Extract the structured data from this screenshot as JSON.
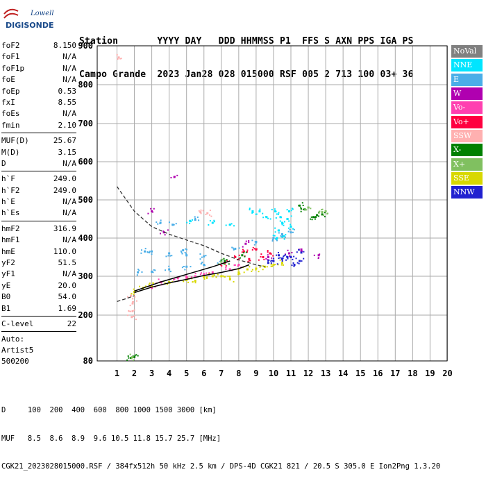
{
  "logo": {
    "line1": "Lowell",
    "line2": "DIGISONDE"
  },
  "header": {
    "row1": "Station       YYYY DAY   DDD HHMMSS P1  FFS S AXN PPS IGA PS",
    "row2": "Campo Grande  2023 Jan28 028 015000 RSF 005 2 713 100 03+ 36"
  },
  "params_group1": [
    {
      "label": "foF2",
      "value": "8.150"
    },
    {
      "label": "foF1",
      "value": "N/A"
    },
    {
      "label": "foF1p",
      "value": "N/A"
    },
    {
      "label": "foE",
      "value": "N/A"
    },
    {
      "label": "foEp",
      "value": "0.53"
    },
    {
      "label": "fxI",
      "value": "8.55"
    },
    {
      "label": "foEs",
      "value": "N/A"
    },
    {
      "label": "fmin",
      "value": "2.10"
    }
  ],
  "params_group2": [
    {
      "label": "MUF(D)",
      "value": "25.67"
    },
    {
      "label": "M(D)",
      "value": "3.15"
    },
    {
      "label": "D",
      "value": "N/A"
    }
  ],
  "params_group3": [
    {
      "label": "h`F",
      "value": "249.0"
    },
    {
      "label": "h`F2",
      "value": "249.0"
    },
    {
      "label": "h`E",
      "value": "N/A"
    },
    {
      "label": "h`Es",
      "value": "N/A"
    }
  ],
  "params_group4": [
    {
      "label": "hmF2",
      "value": "316.9"
    },
    {
      "label": "hmF1",
      "value": "N/A"
    },
    {
      "label": "hmE",
      "value": "110.0"
    },
    {
      "label": "yF2",
      "value": "51.5"
    },
    {
      "label": "yF1",
      "value": "N/A"
    },
    {
      "label": "yE",
      "value": "20.0"
    },
    {
      "label": "B0",
      "value": "54.0"
    },
    {
      "label": "B1",
      "value": "1.69"
    }
  ],
  "params_group5": [
    {
      "label": "C-level",
      "value": "22"
    }
  ],
  "auto": {
    "line1": "Auto:",
    "line2": "Artist5",
    "line3": "500200"
  },
  "legend": [
    {
      "label": "NoVal",
      "color": "#808080"
    },
    {
      "label": "NNE",
      "color": "#00e5ff"
    },
    {
      "label": "E",
      "color": "#4aaee8"
    },
    {
      "label": "W",
      "color": "#b000b0"
    },
    {
      "label": "Vo-",
      "color": "#ff40b0"
    },
    {
      "label": "Vo+",
      "color": "#ff0040"
    },
    {
      "label": "SSW",
      "color": "#ffb0b0"
    },
    {
      "label": "X-",
      "color": "#008000"
    },
    {
      "label": "X+",
      "color": "#80c060"
    },
    {
      "label": "SSE",
      "color": "#d8d800"
    },
    {
      "label": "NNW",
      "color": "#2020d0"
    }
  ],
  "footer": {
    "line1": "D     100  200  400  600  800 1000 1500 3000 [km]",
    "line2": "MUF   8.5  8.6  8.9  9.6 10.5 11.8 15.7 25.7 [MHz]",
    "line3": "CGK21_2023028015000.RSF / 384fx512h 50 kHz 2.5 km / DPS-4D CGK21 821 / 20.5 S 305.0 E Ion2Png 1.3.20"
  },
  "chart_data": {
    "type": "scatter",
    "x_ticks": [
      1,
      2,
      3,
      4,
      5,
      6,
      7,
      8,
      9,
      10,
      11,
      12,
      13,
      14,
      15,
      16,
      17,
      18,
      19,
      20
    ],
    "y_ticks": [
      80,
      200,
      300,
      400,
      500,
      600,
      700,
      800,
      900
    ],
    "xlim": [
      1,
      20
    ],
    "ylim": [
      80,
      900
    ],
    "grid": true,
    "series": [
      {
        "name": "NNE",
        "values": [
          [
            10.3,
            420
          ],
          [
            10.5,
            440
          ],
          [
            10.8,
            450
          ],
          [
            9.6,
            455
          ],
          [
            8.8,
            470
          ],
          [
            10.2,
            400
          ],
          [
            5.2,
            445
          ],
          [
            7.5,
            435
          ],
          [
            11.0,
            430
          ],
          [
            10.9,
            470
          ],
          [
            10.6,
            405
          ],
          [
            10.4,
            455
          ],
          [
            10.1,
            470
          ],
          [
            6.5,
            440
          ],
          [
            9.2,
            470
          ]
        ]
      },
      {
        "name": "E",
        "values": [
          [
            3.0,
            365
          ],
          [
            4.0,
            360
          ],
          [
            5.0,
            355
          ],
          [
            6.0,
            352
          ],
          [
            3.5,
            440
          ],
          [
            4.2,
            435
          ],
          [
            5.5,
            448
          ],
          [
            2.2,
            310
          ],
          [
            3.0,
            312
          ],
          [
            4.0,
            318
          ],
          [
            5.0,
            325
          ],
          [
            6.0,
            330
          ],
          [
            7.0,
            340
          ],
          [
            9.0,
            390
          ],
          [
            10.0,
            400
          ],
          [
            10.5,
            410
          ],
          [
            11.0,
            415
          ],
          [
            2.6,
            365
          ],
          [
            4.8,
            368
          ],
          [
            7.8,
            372
          ]
        ]
      },
      {
        "name": "W",
        "values": [
          [
            4.3,
            560
          ],
          [
            3.0,
            470
          ],
          [
            9.7,
            350
          ],
          [
            10.9,
            360
          ],
          [
            11.6,
            370
          ],
          [
            12.6,
            355
          ],
          [
            3.7,
            415
          ],
          [
            8.4,
            385
          ]
        ]
      },
      {
        "name": "Vo-",
        "values": [
          [
            3.5,
            285
          ],
          [
            4.5,
            295
          ],
          [
            5.5,
            300
          ],
          [
            6.5,
            310
          ],
          [
            3.0,
            270
          ],
          [
            5.0,
            298
          ],
          [
            6.0,
            305
          ],
          [
            8.0,
            330
          ],
          [
            7.5,
            318
          ]
        ]
      },
      {
        "name": "Vo+",
        "values": [
          [
            7.8,
            350
          ],
          [
            8.3,
            365
          ],
          [
            9.0,
            370
          ],
          [
            8.6,
            345
          ],
          [
            9.8,
            360
          ],
          [
            7.2,
            335
          ],
          [
            9.4,
            350
          ]
        ]
      },
      {
        "name": "SSW",
        "values": [
          [
            1.9,
            210
          ],
          [
            1.8,
            250
          ],
          [
            1.9,
            230
          ],
          [
            1.1,
            870
          ],
          [
            6.2,
            465
          ],
          [
            5.8,
            468
          ],
          [
            1.85,
            195
          ]
        ]
      },
      {
        "name": "X-",
        "values": [
          [
            12.5,
            460
          ],
          [
            12.3,
            455
          ],
          [
            11.8,
            475
          ],
          [
            11.5,
            485
          ],
          [
            1.8,
            88
          ],
          [
            2.0,
            90
          ],
          [
            7.2,
            340
          ],
          [
            8.2,
            355
          ],
          [
            12.8,
            462
          ]
        ]
      },
      {
        "name": "X+",
        "values": [
          [
            13.0,
            470
          ],
          [
            12.8,
            468
          ],
          [
            12.0,
            480
          ],
          [
            1.9,
            90
          ],
          [
            7.0,
            338
          ]
        ]
      },
      {
        "name": "SSE",
        "values": [
          [
            2.0,
            260
          ],
          [
            2.5,
            270
          ],
          [
            3.0,
            275
          ],
          [
            4.0,
            285
          ],
          [
            5.0,
            290
          ],
          [
            6.0,
            298
          ],
          [
            7.0,
            300
          ],
          [
            8.0,
            310
          ],
          [
            8.5,
            318
          ],
          [
            9.0,
            320
          ],
          [
            9.5,
            325
          ],
          [
            10.0,
            330
          ],
          [
            10.5,
            335
          ],
          [
            7.5,
            292
          ],
          [
            6.5,
            300
          ],
          [
            5.5,
            288
          ]
        ]
      },
      {
        "name": "NNW",
        "values": [
          [
            10.0,
            340
          ],
          [
            10.5,
            345
          ],
          [
            11.0,
            350
          ],
          [
            11.5,
            340
          ],
          [
            11.2,
            330
          ],
          [
            10.8,
            350
          ],
          [
            9.7,
            335
          ],
          [
            10.3,
            355
          ],
          [
            11.6,
            362
          ]
        ]
      }
    ],
    "dashed_curve": [
      [
        1.0,
        535
      ],
      [
        2.0,
        470
      ],
      [
        3.0,
        430
      ],
      [
        4.0,
        410
      ],
      [
        5.0,
        395
      ],
      [
        6.0,
        380
      ],
      [
        7.0,
        360
      ],
      [
        8.0,
        343
      ],
      [
        9.0,
        330
      ],
      [
        9.5,
        325
      ]
    ],
    "dashed_curve_low": [
      [
        1.0,
        235
      ],
      [
        1.5,
        242
      ],
      [
        2.0,
        250
      ]
    ],
    "solid_curves": [
      [
        [
          2.0,
          258
        ],
        [
          3.0,
          272
        ],
        [
          4.0,
          283
        ],
        [
          5.0,
          292
        ],
        [
          6.0,
          302
        ],
        [
          7.0,
          310
        ],
        [
          8.0,
          320
        ],
        [
          8.6,
          330
        ]
      ],
      [
        [
          2.0,
          262
        ],
        [
          3.5,
          285
        ],
        [
          5.0,
          305
        ],
        [
          6.5,
          325
        ],
        [
          7.5,
          340
        ]
      ]
    ]
  }
}
